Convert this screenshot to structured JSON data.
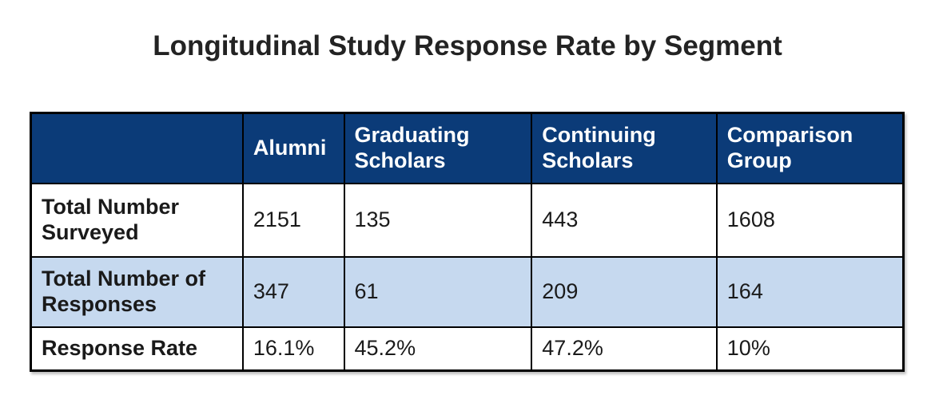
{
  "chart_data": {
    "type": "table",
    "title": "Longitudinal Study Response Rate by Segment",
    "columns": [
      "",
      "Alumni",
      "Graduating Scholars",
      "Continuing Scholars",
      "Comparison Group"
    ],
    "rows": [
      {
        "label": "Total Number Surveyed",
        "values": [
          "2151",
          "135",
          "443",
          "1608"
        ]
      },
      {
        "label": "Total Number of Responses",
        "values": [
          "347",
          "61",
          "209",
          "164"
        ]
      },
      {
        "label": "Response Rate",
        "values": [
          "16.1%",
          "45.2%",
          "47.2%",
          "10%"
        ]
      }
    ],
    "layout": {
      "header_bg": "#0b3b78",
      "header_text_color": "#ffffff",
      "alt_row_bg": "#c6d9ef",
      "border_color": "#000000",
      "row_shading": [
        "white",
        "alt",
        "white"
      ],
      "legend": "none",
      "grid": "full-borders"
    }
  }
}
